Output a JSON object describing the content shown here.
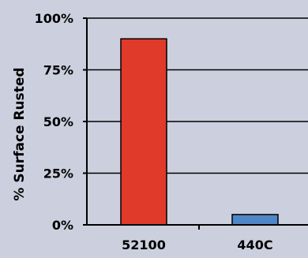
{
  "chart_data": {
    "type": "bar",
    "title": "",
    "xlabel": "",
    "ylabel": "% Surface Rusted",
    "categories": [
      "52100",
      "440C"
    ],
    "values": [
      90,
      5
    ],
    "ylim": [
      0,
      100
    ],
    "yticks": [
      0,
      25,
      50,
      75,
      100
    ],
    "ytick_labels": [
      "0%",
      "25%",
      "50%",
      "75%",
      "100%"
    ],
    "grid": true,
    "legend": "none",
    "bar_colors": [
      "#e03a2a",
      "#4f86c6"
    ],
    "background_color": "#ccd0de",
    "axis_color": "#000000"
  }
}
